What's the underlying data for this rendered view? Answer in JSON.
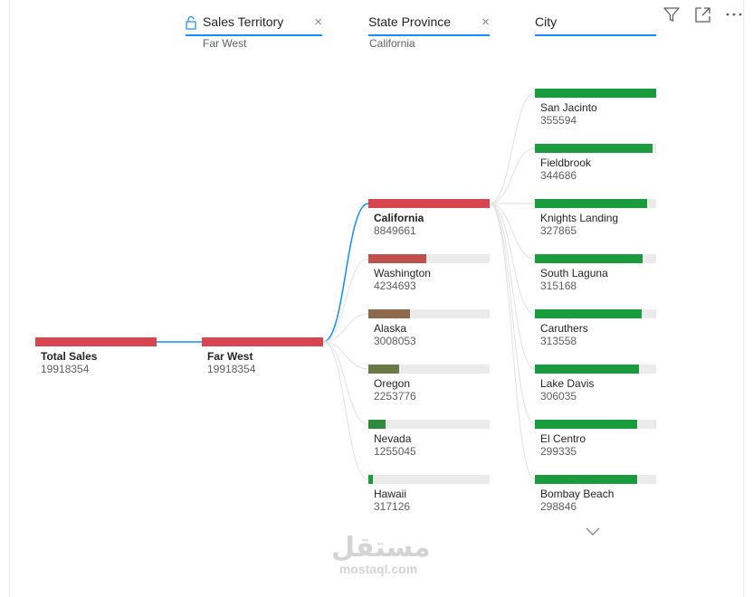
{
  "toolbar": {
    "filter_icon": "filter-icon",
    "focus_icon": "focus-mode-icon",
    "more_icon": "more-options-icon"
  },
  "levels": [
    {
      "title": "Sales Territory",
      "filter": "Far West",
      "locked": true,
      "close": "×"
    },
    {
      "title": "State Province",
      "filter": "California",
      "locked": false,
      "close": "×"
    },
    {
      "title": "City",
      "filter": "",
      "locked": false,
      "close": ""
    }
  ],
  "root": {
    "label": "Total Sales",
    "value": "19918354",
    "color": "#d64550"
  },
  "territory": {
    "label": "Far West",
    "value": "19918354",
    "color": "#d64550"
  },
  "states": [
    {
      "label": "California",
      "value": "8849661",
      "color": "#d64550",
      "selected": true
    },
    {
      "label": "Washington",
      "value": "4234693",
      "color": "#c0504d"
    },
    {
      "label": "Alaska",
      "value": "3008053",
      "color": "#8b6a4f"
    },
    {
      "label": "Oregon",
      "value": "2253776",
      "color": "#6b7a44"
    },
    {
      "label": "Nevada",
      "value": "1255045",
      "color": "#2e8b3e"
    },
    {
      "label": "Hawaii",
      "value": "317126",
      "color": "#1a9c3e"
    }
  ],
  "cities": [
    {
      "label": "San Jacinto",
      "value": "355594"
    },
    {
      "label": "Fieldbrook",
      "value": "344686"
    },
    {
      "label": "Knights Landing",
      "value": "327865"
    },
    {
      "label": "South Laguna",
      "value": "315168"
    },
    {
      "label": "Caruthers",
      "value": "313558"
    },
    {
      "label": "Lake Davis",
      "value": "306035"
    },
    {
      "label": "El Centro",
      "value": "299335"
    },
    {
      "label": "Bombay Beach",
      "value": "298846"
    }
  ],
  "city_color": "#1a9c3e",
  "scroll_down_icon": "chevron-down-icon",
  "watermark": {
    "arabic": "مستقل",
    "latin": "mostaql.com"
  }
}
